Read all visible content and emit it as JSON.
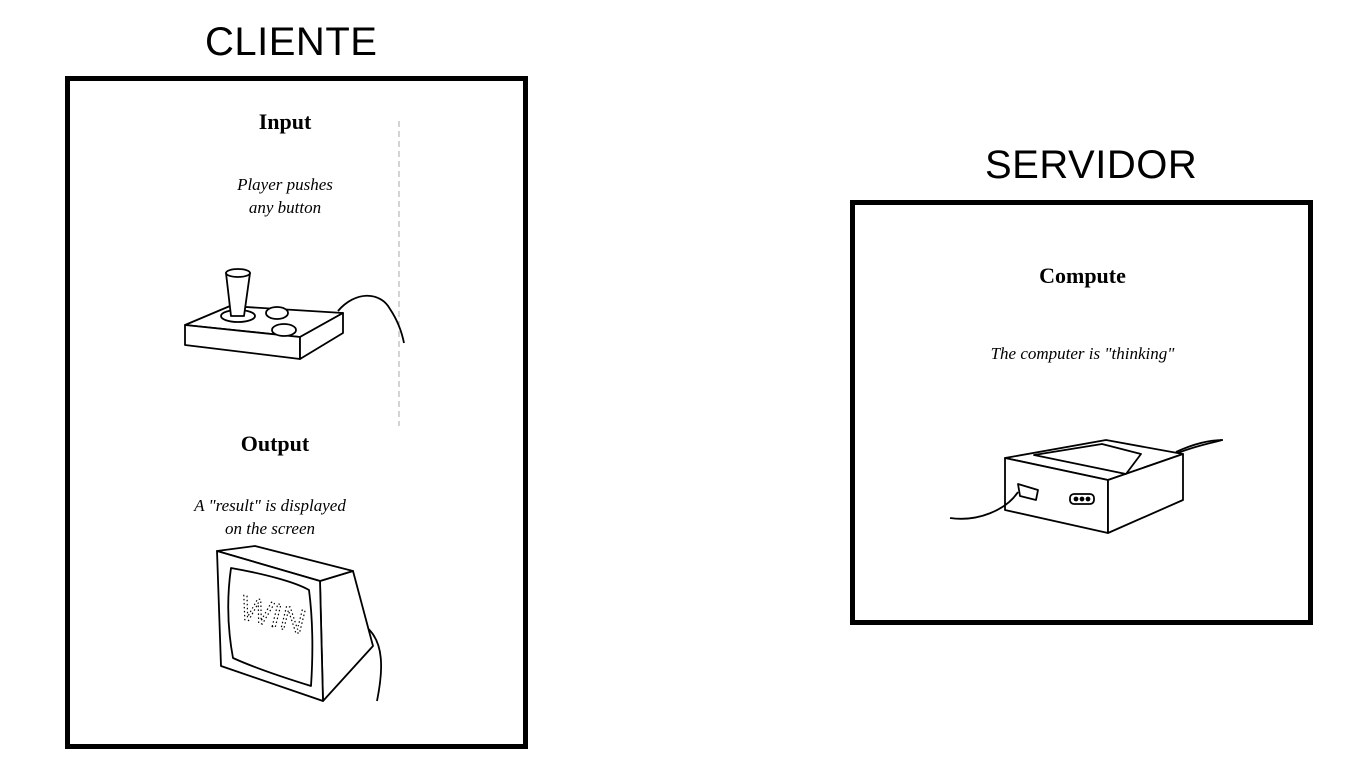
{
  "client": {
    "heading": "CLIENTE",
    "input": {
      "title": "Input",
      "description_lines": [
        "Player pushes",
        "any button"
      ],
      "illustration_icon": "joystick-icon"
    },
    "output": {
      "title": "Output",
      "description_lines": [
        "A \"result\" is displayed",
        "on the screen"
      ],
      "illustration_icon": "monitor-icon",
      "screen_text": "WIN"
    }
  },
  "server": {
    "heading": "SERVIDOR",
    "compute": {
      "title": "Compute",
      "description": "The computer is \"thinking\"",
      "illustration_icon": "console-icon"
    }
  }
}
